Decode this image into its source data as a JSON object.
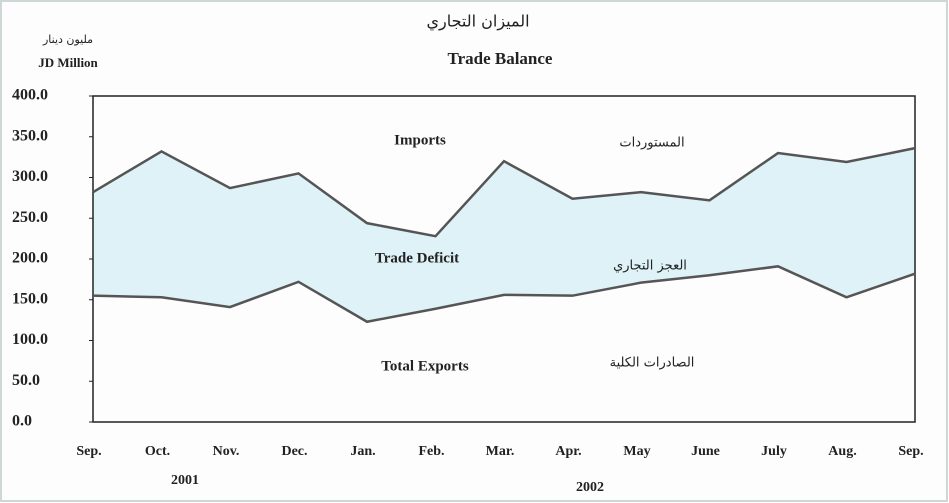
{
  "chart_data": {
    "type": "line",
    "title": "Trade Balance",
    "title_arabic": "الميزان التجاري",
    "y_label": "JD Million",
    "y_label_arabic": "مليون دينار",
    "categories": [
      "Sep.",
      "Oct.",
      "Nov.",
      "Dec.",
      "Jan.",
      "Feb.",
      "Mar.",
      "Apr.",
      "May",
      "June",
      "July",
      "Aug.",
      "Sep."
    ],
    "series": [
      {
        "name": "Imports",
        "color": "#555555",
        "values": [
          282,
          332,
          287,
          305,
          244,
          228,
          320,
          274,
          282,
          272,
          330,
          319,
          336
        ]
      },
      {
        "name": "Total Exports",
        "color": "#555555",
        "values": [
          155,
          153,
          141,
          172,
          123,
          139,
          156,
          155,
          171,
          180,
          191,
          153,
          182
        ]
      }
    ],
    "fill_between_color": "#def2f7",
    "annotations": [
      "المستوردات",
      "Trade Deficit",
      "العجز التجاري",
      "الصادرات الكلية",
      "2001",
      "2002"
    ],
    "ylim": [
      0,
      400
    ],
    "yticks": [
      {
        "value": 0,
        "label": "0.0"
      },
      {
        "value": 50,
        "label": "50.0"
      },
      {
        "value": 100,
        "label": "100.0"
      },
      {
        "value": 150,
        "label": "150.0"
      },
      {
        "value": 200,
        "label": "200.0"
      },
      {
        "value": 250,
        "label": "250.0"
      },
      {
        "value": 300,
        "label": "300.0"
      },
      {
        "value": 350,
        "label": "350.0"
      },
      {
        "value": 400,
        "label": "400.0"
      }
    ],
    "grid": false
  }
}
